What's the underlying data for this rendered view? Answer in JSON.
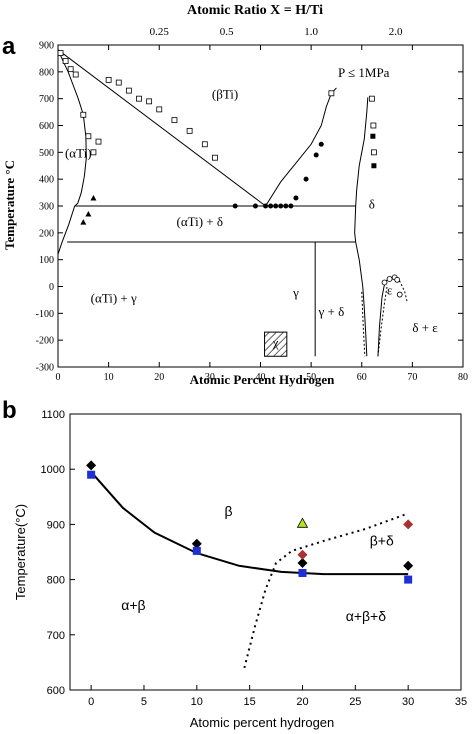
{
  "chart_data": [
    {
      "panel": "a",
      "type": "scatter",
      "title": "",
      "top_axis_label": "Atomic Ratio X = H/Ti",
      "top_ticks": [
        {
          "label": "0.25",
          "x": 20
        },
        {
          "label": "0.5",
          "x": 33.3
        },
        {
          "label": "1.0",
          "x": 50
        },
        {
          "label": "2.0",
          "x": 66.7
        }
      ],
      "xlabel": "Atomic Percent Hydrogen",
      "ylabel": "Temperature °C",
      "xlim": [
        0,
        80
      ],
      "ylim": [
        -300,
        900
      ],
      "xticks": [
        "0",
        "10",
        "20",
        "30",
        "40",
        "50",
        "60",
        "70",
        "80"
      ],
      "yticks": [
        "-300",
        "-200",
        "-100",
        "0",
        "100",
        "200",
        "300",
        "400",
        "500",
        "600",
        "700",
        "800",
        "900"
      ],
      "annotation": "P ≤ 1MPa",
      "regions": [
        {
          "label": "(βTi)",
          "x": 33,
          "y": 700
        },
        {
          "label": "(αTi)",
          "x": 4,
          "y": 480
        },
        {
          "label": "δ",
          "x": 62,
          "y": 290
        },
        {
          "label": "(αTi) + δ",
          "x": 28,
          "y": 225
        },
        {
          "label": "(αTi) + γ",
          "x": 11,
          "y": -60
        },
        {
          "label": "γ",
          "x": 47,
          "y": -40
        },
        {
          "label": "γ + δ",
          "x": 54,
          "y": -110
        },
        {
          "label": "χ",
          "x": 43,
          "y": -225
        },
        {
          "label": "ε",
          "x": 65.5,
          "y": -30
        },
        {
          "label": "δ + ε",
          "x": 72.5,
          "y": -170
        }
      ],
      "lines": [
        {
          "x": [
            0,
            41
          ],
          "y": [
            882,
            300
          ]
        },
        {
          "x": [
            0,
            1,
            2,
            3,
            4,
            5,
            5.5,
            5.6,
            5.2,
            4.6,
            3.9,
            3.3
          ],
          "y": [
            882,
            840,
            800,
            750,
            700,
            640,
            560,
            480,
            410,
            350,
            310,
            300
          ]
        },
        {
          "x": [
            3.3,
            2.1,
            0.8,
            0
          ],
          "y": [
            300,
            230,
            165,
            120
          ]
        },
        {
          "x": [
            41,
            44,
            47,
            50,
            52,
            53,
            54,
            55
          ],
          "y": [
            300,
            390,
            460,
            530,
            600,
            670,
            720,
            740
          ]
        },
        {
          "x": [
            3.3,
            58.8
          ],
          "y": [
            300,
            300
          ]
        },
        {
          "x": [
            1.8,
            58.8
          ],
          "y": [
            166,
            166
          ]
        },
        {
          "x": [
            50.8,
            50.8
          ],
          "y": [
            166,
            -260
          ]
        },
        {
          "x": [
            58.8,
            59,
            59.5,
            60.5,
            61,
            61.2
          ],
          "y": [
            300,
            360,
            450,
            550,
            650,
            705
          ]
        },
        {
          "x": [
            58.8,
            58.6,
            58.8,
            59.5,
            60.2,
            60.5,
            60.8,
            61
          ],
          "y": [
            300,
            200,
            166,
            100,
            0,
            -80,
            -180,
            -260
          ]
        },
        {
          "x": [
            63.2,
            63.5,
            64,
            64.4,
            64.8,
            65.3,
            66
          ],
          "y": [
            -260,
            -150,
            -40,
            0,
            20,
            30,
            35
          ]
        }
      ],
      "series": [
        {
          "marker": "open-square",
          "x": [
            0.5,
            1.5,
            2.5,
            3.5,
            5,
            6,
            7,
            8,
            10,
            12,
            14,
            16,
            18,
            20,
            23,
            26,
            29,
            31,
            54,
            62,
            62.3,
            62.4
          ],
          "y": [
            870,
            840,
            810,
            790,
            640,
            560,
            500,
            540,
            770,
            760,
            730,
            700,
            690,
            660,
            620,
            580,
            530,
            480,
            720,
            700,
            600,
            500
          ]
        },
        {
          "marker": "filled-circle",
          "x": [
            35,
            39,
            41,
            42,
            43,
            44,
            45,
            46,
            47,
            49,
            51,
            52
          ],
          "y": [
            300,
            300,
            300,
            300,
            300,
            300,
            300,
            300,
            330,
            400,
            490,
            530
          ]
        },
        {
          "marker": "filled-triangle",
          "x": [
            5,
            6,
            7
          ],
          "y": [
            240,
            270,
            330
          ]
        },
        {
          "marker": "filled-square",
          "x": [
            62.2,
            62.4
          ],
          "y": [
            560,
            450
          ]
        },
        {
          "marker": "open-circle",
          "x": [
            64.5,
            65.5,
            66.5,
            67,
            67.5
          ],
          "y": [
            15,
            28,
            34,
            25,
            -30
          ]
        }
      ],
      "hatched_box": {
        "x": [
          40.8,
          45.2
        ],
        "y": [
          -260,
          -170
        ]
      }
    },
    {
      "panel": "b",
      "type": "scatter",
      "title": "",
      "xlabel": "Atomic percent hydrogen",
      "ylabel": "Temperature(°C)",
      "xlim": [
        -2,
        35
      ],
      "ylim": [
        600,
        1100
      ],
      "xticks": [
        "0",
        "5",
        "10",
        "15",
        "20",
        "25",
        "30",
        "35"
      ],
      "yticks": [
        "600",
        "700",
        "800",
        "900",
        "1000",
        "1100"
      ],
      "regions": [
        {
          "label": "β",
          "x": 13,
          "y": 915
        },
        {
          "label": "β+δ",
          "x": 27.5,
          "y": 862
        },
        {
          "label": "α+β",
          "x": 4,
          "y": 745
        },
        {
          "label": "α+β+δ",
          "x": 26,
          "y": 725
        }
      ],
      "boundary_solid": {
        "x": [
          0,
          3,
          6,
          10,
          14,
          18,
          22,
          26,
          30
        ],
        "y": [
          995,
          930,
          885,
          848,
          825,
          814,
          810,
          810,
          810
        ]
      },
      "boundary_dotted": {
        "x": [
          14.5,
          15.5,
          16.5,
          17.5,
          19,
          22,
          26,
          30
        ],
        "y": [
          640,
          715,
          782,
          830,
          852,
          870,
          892,
          920
        ]
      },
      "series": [
        {
          "marker": "black-diamond",
          "color": "#000000",
          "x": [
            0,
            10,
            20,
            30
          ],
          "y": [
            1007,
            865,
            830,
            825
          ]
        },
        {
          "marker": "blue-square",
          "color": "#1f2fd6",
          "x": [
            0,
            10,
            20,
            30
          ],
          "y": [
            990,
            852,
            812,
            800
          ]
        },
        {
          "marker": "red-diamond",
          "color": "#a83232",
          "x": [
            20,
            30
          ],
          "y": [
            845,
            900
          ]
        },
        {
          "marker": "green-triangle",
          "color": "#b5e61d",
          "x": [
            20
          ],
          "y": [
            902
          ]
        }
      ]
    }
  ],
  "panels": {
    "a": "a",
    "b": "b"
  }
}
